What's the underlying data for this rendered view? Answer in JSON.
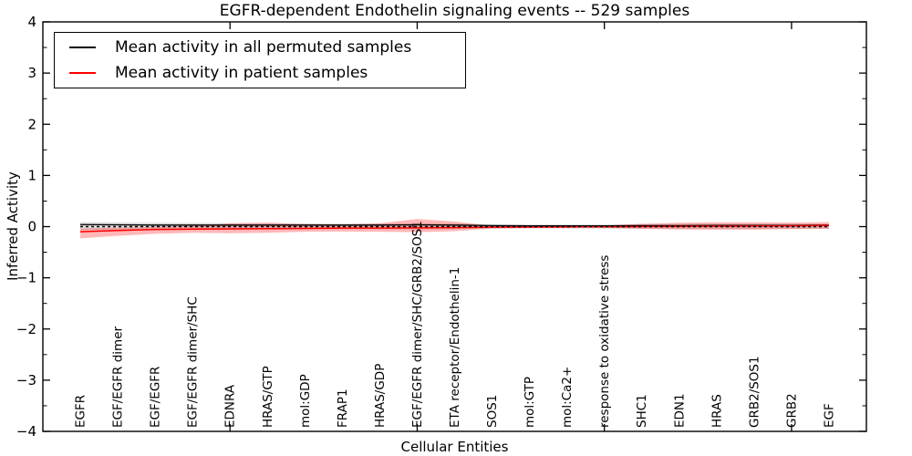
{
  "chart_data": {
    "type": "line",
    "title": "EGFR-dependent Endothelin signaling events -- 529 samples",
    "xlabel": "Cellular Entities",
    "ylabel": "Inferred Activity",
    "xlim": [
      0,
      22
    ],
    "ylim": [
      -4,
      4
    ],
    "grid": false,
    "legend_position": "upper left",
    "yticks": {
      "major": [
        -4,
        -3,
        -2,
        -1,
        0,
        1,
        2,
        3,
        4
      ],
      "labels": [
        "−4",
        "−3",
        "−2",
        "−1",
        "0",
        "1",
        "2",
        "3",
        "4"
      ],
      "minor": [
        -3.5,
        -2.5,
        -1.5,
        -0.5,
        0.5,
        1.5,
        2.5,
        3.5
      ]
    },
    "xticks": {
      "major": [
        5,
        10,
        15,
        20
      ]
    },
    "categories": [
      "EGFR",
      "EGF/EGFR dimer",
      "EGF/EGFR",
      "EGF/EGFR dimer/SHC",
      "EDNRA",
      "HRAS/GTP",
      "mol:GDP",
      "FRAP1",
      "HRAS/GDP",
      "EGF/EGFR dimer/SHC/GRB2/SOS1",
      "ETA receptor/Endothelin-1",
      "SOS1",
      "mol:GTP",
      "mol:Ca2+",
      "response to oxidative stress",
      "SHC1",
      "EDN1",
      "HRAS",
      "GRB2/SOS1",
      "GRB2",
      "EGF"
    ],
    "x": [
      1,
      2,
      3,
      4,
      5,
      6,
      7,
      8,
      9,
      10,
      11,
      12,
      13,
      14,
      15,
      16,
      17,
      18,
      19,
      20,
      21
    ],
    "series": [
      {
        "name": "Mean activity in all permuted samples",
        "color": "#000000",
        "line_style": "solid",
        "line_width": 1.3,
        "values": [
          0.04,
          0.035,
          0.03,
          0.03,
          0.03,
          0.03,
          0.03,
          0.03,
          0.03,
          0.035,
          0.03,
          0.02,
          0.015,
          0.015,
          0.015,
          0.02,
          0.02,
          0.025,
          0.025,
          0.025,
          0.03
        ],
        "band": {
          "fill": "rgba(0,0,0,0.13)",
          "high": [
            0.09,
            0.085,
            0.08,
            0.075,
            0.07,
            0.07,
            0.065,
            0.065,
            0.065,
            0.07,
            0.065,
            0.05,
            0.045,
            0.045,
            0.045,
            0.05,
            0.055,
            0.055,
            0.055,
            0.055,
            0.055
          ],
          "low": [
            -0.07,
            -0.065,
            -0.06,
            -0.055,
            -0.05,
            -0.05,
            -0.05,
            -0.05,
            -0.05,
            -0.055,
            -0.05,
            -0.04,
            -0.035,
            -0.035,
            -0.035,
            -0.04,
            -0.045,
            -0.045,
            -0.045,
            -0.045,
            -0.045
          ]
        }
      },
      {
        "name": "Mean activity in patient samples",
        "color": "#ff0000",
        "line_style": "solid",
        "line_width": 1.5,
        "values": [
          -0.1,
          -0.075,
          -0.055,
          -0.05,
          -0.045,
          -0.04,
          -0.035,
          -0.03,
          -0.028,
          -0.025,
          -0.02,
          -0.012,
          -0.008,
          -0.006,
          -0.004,
          0.0,
          0.005,
          0.01,
          0.012,
          0.015,
          0.025
        ],
        "band": {
          "fill": "rgba(255,0,0,0.28)",
          "high": [
            -0.035,
            -0.02,
            -0.005,
            0.015,
            0.065,
            0.075,
            0.05,
            0.04,
            0.065,
            0.15,
            0.1,
            0.012,
            0.012,
            0.012,
            0.02,
            0.055,
            0.075,
            0.085,
            0.085,
            0.08,
            0.09
          ],
          "low": [
            -0.23,
            -0.18,
            -0.14,
            -0.12,
            -0.13,
            -0.12,
            -0.1,
            -0.095,
            -0.1,
            -0.11,
            -0.09,
            -0.035,
            -0.025,
            -0.022,
            -0.025,
            -0.045,
            -0.055,
            -0.06,
            -0.06,
            -0.05,
            -0.04
          ]
        }
      }
    ],
    "reference_line": {
      "y": 0,
      "color": "#000000",
      "line_style": "dashed"
    }
  }
}
